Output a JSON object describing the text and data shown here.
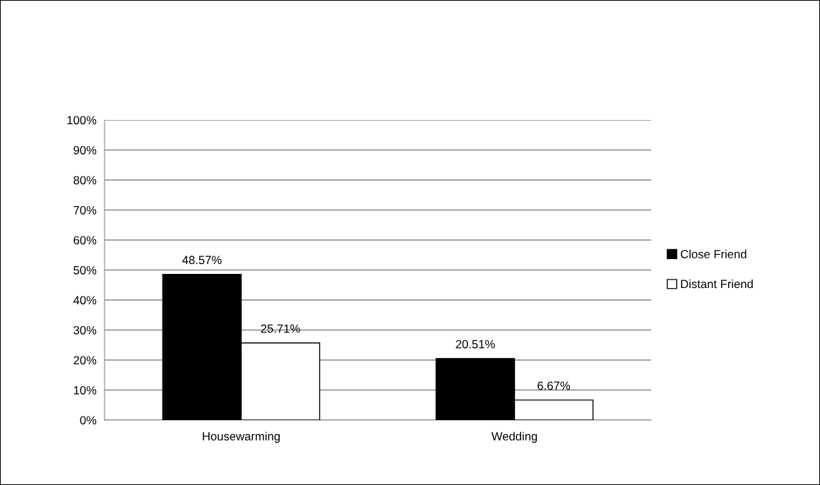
{
  "chart_data": {
    "type": "bar",
    "categories": [
      "Housewarming",
      "Wedding"
    ],
    "series": [
      {
        "name": "Close Friend",
        "color": "#000000",
        "values": [
          48.57,
          20.51
        ],
        "value_labels": [
          "48.57%",
          "20.51%"
        ]
      },
      {
        "name": "Distant Friend",
        "color": "#ffffff",
        "values": [
          25.71,
          6.67
        ],
        "value_labels": [
          "25.71%",
          "6.67%"
        ]
      }
    ],
    "ylim": [
      0,
      100
    ],
    "yticks": [
      {
        "value": 0,
        "label": "0%"
      },
      {
        "value": 10,
        "label": "10%"
      },
      {
        "value": 20,
        "label": "20%"
      },
      {
        "value": 30,
        "label": "30%"
      },
      {
        "value": 40,
        "label": "40%"
      },
      {
        "value": 50,
        "label": "50%"
      },
      {
        "value": 60,
        "label": "60%"
      },
      {
        "value": 70,
        "label": "70%"
      },
      {
        "value": 80,
        "label": "80%"
      },
      {
        "value": 90,
        "label": "90%"
      },
      {
        "value": 100,
        "label": "100%"
      }
    ],
    "grid": "y",
    "legend": "right"
  }
}
